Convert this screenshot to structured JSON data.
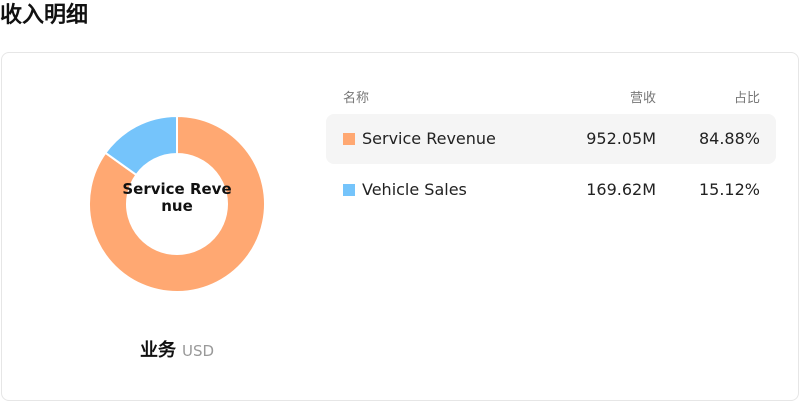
{
  "page": {
    "title": "收入明细"
  },
  "donut": {
    "center_label": "Service Revenue"
  },
  "caption": {
    "main": "业务",
    "unit": "USD"
  },
  "table": {
    "headers": {
      "name": "名称",
      "revenue": "营收",
      "share": "占比"
    },
    "rows": [
      {
        "name": "Service Revenue",
        "revenue": "952.05M",
        "share": "84.88%",
        "color": "#FFA872"
      },
      {
        "name": "Vehicle Sales",
        "revenue": "169.62M",
        "share": "15.12%",
        "color": "#75C4FB"
      }
    ]
  },
  "chart_data": {
    "type": "pie",
    "categories": [
      "Service Revenue",
      "Vehicle Sales"
    ],
    "values": [
      84.88,
      15.12
    ],
    "colors": [
      "#FFA872",
      "#75C4FB"
    ]
  }
}
